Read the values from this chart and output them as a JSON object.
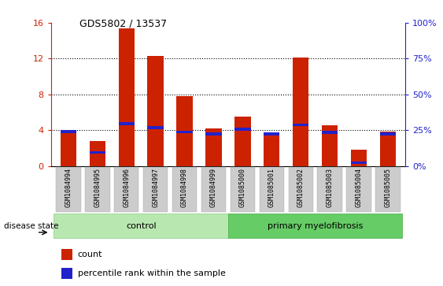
{
  "title": "GDS5802 / 13537",
  "samples": [
    "GSM1084994",
    "GSM1084995",
    "GSM1084996",
    "GSM1084997",
    "GSM1084998",
    "GSM1084999",
    "GSM1085000",
    "GSM1085001",
    "GSM1085002",
    "GSM1085003",
    "GSM1085004",
    "GSM1085005"
  ],
  "counts": [
    3.7,
    2.8,
    15.4,
    12.3,
    7.8,
    4.2,
    5.5,
    3.5,
    12.1,
    4.5,
    1.8,
    3.8
  ],
  "percentile_values_left": [
    3.85,
    1.5,
    4.7,
    4.3,
    3.8,
    3.55,
    4.1,
    3.55,
    4.6,
    3.75,
    0.35,
    3.55
  ],
  "blue_bar_height": 0.32,
  "bar_width": 0.55,
  "red_color": "#cc2200",
  "blue_color": "#2222cc",
  "ylim_left": [
    0,
    16
  ],
  "ylim_right": [
    0,
    100
  ],
  "yticks_left": [
    0,
    4,
    8,
    12,
    16
  ],
  "yticks_right": [
    0,
    25,
    50,
    75,
    100
  ],
  "ytick_labels_right": [
    "0%",
    "25%",
    "50%",
    "75%",
    "100%"
  ],
  "control_color": "#b8e8b0",
  "primary_color": "#66cc66",
  "xticklabel_bg": "#cccccc",
  "disease_state_label": "disease state"
}
